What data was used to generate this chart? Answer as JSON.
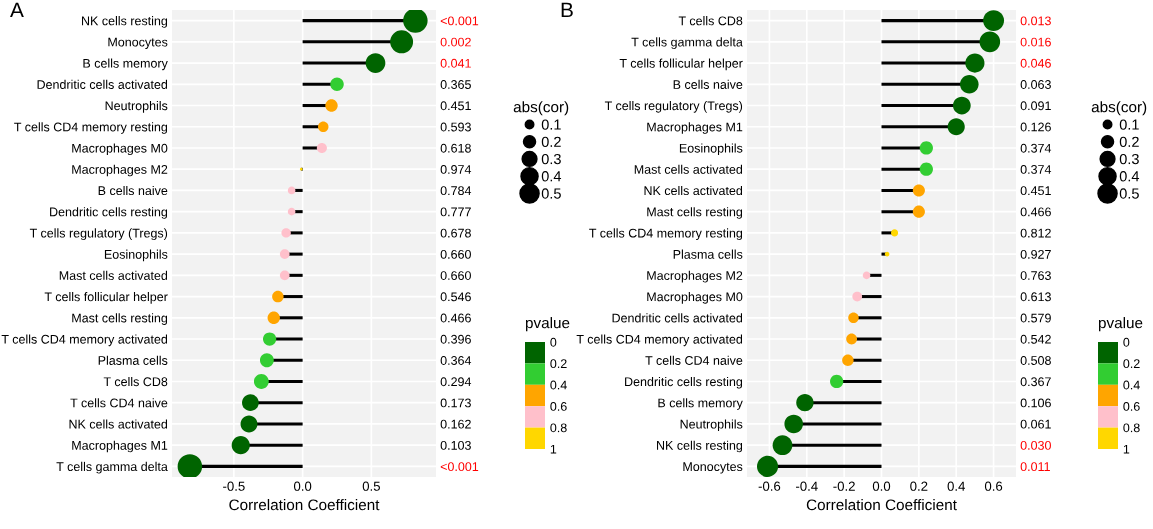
{
  "chart_data": [
    {
      "type": "lollipop",
      "title": "A",
      "xlabel": "Correlation Coefficient",
      "categories": [
        "NK cells resting",
        "Monocytes",
        "B cells memory",
        "Dendritic cells activated",
        "Neutrophils",
        "T cells CD4 memory resting",
        "Macrophages M0",
        "Macrophages M2",
        "B cells naive",
        "Dendritic cells resting",
        "T cells regulatory (Tregs)",
        "Eosinophils",
        "Mast cells activated",
        "T cells follicular helper",
        "Mast cells resting",
        "T cells CD4 memory activated",
        "Plasma cells",
        "T cells CD8",
        "T cells CD4 naive",
        "NK cells activated",
        "Macrophages M1",
        "T cells gamma delta"
      ],
      "values": [
        0.82,
        0.72,
        0.53,
        0.25,
        0.21,
        0.15,
        0.14,
        -0.01,
        -0.08,
        -0.08,
        -0.12,
        -0.13,
        -0.13,
        -0.18,
        -0.21,
        -0.24,
        -0.26,
        -0.3,
        -0.38,
        -0.39,
        -0.45,
        -0.82
      ],
      "sizes": [
        0.82,
        0.72,
        0.53,
        0.25,
        0.21,
        0.15,
        0.14,
        0.01,
        0.08,
        0.08,
        0.12,
        0.13,
        0.13,
        0.18,
        0.21,
        0.24,
        0.26,
        0.3,
        0.38,
        0.39,
        0.45,
        0.82
      ],
      "colors": [
        "#006400",
        "#006400",
        "#006400",
        "#32cd32",
        "#ffa500",
        "#ffa500",
        "#ffc0cb",
        "#ffd700",
        "#ffc0cb",
        "#ffc0cb",
        "#ffc0cb",
        "#ffc0cb",
        "#ffc0cb",
        "#ffa500",
        "#ffa500",
        "#32cd32",
        "#32cd32",
        "#32cd32",
        "#006400",
        "#006400",
        "#006400",
        "#006400"
      ],
      "y2_categories": [
        "<0.001",
        "0.002",
        "0.041",
        "0.365",
        "0.451",
        "0.593",
        "0.618",
        "0.974",
        "0.784",
        "0.777",
        "0.678",
        "0.660",
        "0.660",
        "0.546",
        "0.466",
        "0.396",
        "0.364",
        "0.294",
        "0.173",
        "0.162",
        "0.103",
        "<0.001"
      ],
      "xlim": [
        -0.95,
        0.97
      ],
      "xticks": [
        {
          "value": -0.5,
          "label": "-0.5"
        },
        {
          "value": 0,
          "label": "0.0"
        },
        {
          "value": 0.5,
          "label": "0.5"
        }
      ],
      "legend_title": "abs(cor)",
      "size_legend": [
        0.1,
        0.2,
        0.3,
        0.4,
        0.5
      ],
      "clabel": "pvalue",
      "clim": [
        0,
        1
      ],
      "cticks": [
        0,
        0.2,
        0.4,
        0.6,
        0.8,
        1
      ],
      "grid": true,
      "orientation": "horizontal"
    },
    {
      "type": "lollipop",
      "title": "B",
      "xlabel": "Correlation Coefficient",
      "categories": [
        "T cells CD8",
        "T cells gamma delta",
        "T cells follicular helper",
        "B cells naive",
        "T cells regulatory (Tregs)",
        "Macrophages M1",
        "Eosinophils",
        "Mast cells activated",
        "NK cells activated",
        "Mast cells resting",
        "T cells CD4 memory resting",
        "Plasma cells",
        "Macrophages M2",
        "Macrophages M0",
        "Dendritic cells activated",
        "T cells CD4 memory activated",
        "T cells CD4 naive",
        "Dendritic cells resting",
        "B cells memory",
        "Neutrophils",
        "NK cells resting",
        "Monocytes"
      ],
      "values": [
        0.6,
        0.58,
        0.5,
        0.47,
        0.43,
        0.4,
        0.24,
        0.24,
        0.2,
        0.2,
        0.07,
        0.03,
        -0.08,
        -0.13,
        -0.15,
        -0.16,
        -0.18,
        -0.24,
        -0.41,
        -0.47,
        -0.53,
        -0.61
      ],
      "sizes": [
        0.6,
        0.58,
        0.5,
        0.47,
        0.43,
        0.4,
        0.24,
        0.24,
        0.2,
        0.2,
        0.07,
        0.03,
        0.08,
        0.13,
        0.15,
        0.16,
        0.18,
        0.24,
        0.41,
        0.47,
        0.53,
        0.61
      ],
      "colors": [
        "#006400",
        "#006400",
        "#006400",
        "#006400",
        "#006400",
        "#006400",
        "#32cd32",
        "#32cd32",
        "#ffa500",
        "#ffa500",
        "#ffd700",
        "#ffd700",
        "#ffc0cb",
        "#ffc0cb",
        "#ffa500",
        "#ffa500",
        "#ffa500",
        "#32cd32",
        "#006400",
        "#006400",
        "#006400",
        "#006400"
      ],
      "y2_categories": [
        "0.013",
        "0.016",
        "0.046",
        "0.063",
        "0.091",
        "0.126",
        "0.374",
        "0.374",
        "0.451",
        "0.466",
        "0.812",
        "0.927",
        "0.763",
        "0.613",
        "0.579",
        "0.542",
        "0.508",
        "0.367",
        "0.106",
        "0.061",
        "0.030",
        "0.011"
      ],
      "xlim": [
        -0.72,
        0.72
      ],
      "xticks": [
        {
          "value": -0.6,
          "label": "-0.6"
        },
        {
          "value": -0.4,
          "label": "-0.4"
        },
        {
          "value": -0.2,
          "label": "-0.2"
        },
        {
          "value": 0,
          "label": "0.0"
        },
        {
          "value": 0.2,
          "label": "0.2"
        },
        {
          "value": 0.4,
          "label": "0.4"
        },
        {
          "value": 0.6,
          "label": "0.6"
        }
      ],
      "legend_title": "abs(cor)",
      "size_legend": [
        0.1,
        0.2,
        0.3,
        0.4,
        0.5
      ],
      "clabel": "pvalue",
      "clim": [
        0,
        1
      ],
      "cticks": [
        0,
        0.2,
        0.4,
        0.6,
        0.8,
        1
      ],
      "grid": true,
      "orientation": "horizontal"
    }
  ]
}
